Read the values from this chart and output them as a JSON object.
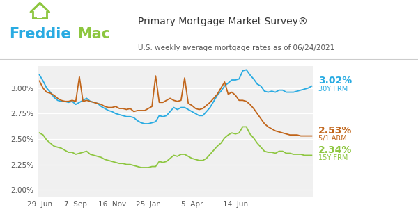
{
  "title": "Primary Mortgage Market Survey®",
  "subtitle": "U.S. weekly average mortgage rates as of 06/24/2021",
  "bg_color": "#ffffff",
  "plot_bg_color": "#f0f0f0",
  "x_labels": [
    "29. Jun",
    "7. Sep",
    "16. Nov",
    "25. Jan",
    "5. Apr",
    "14. Jun"
  ],
  "x_tick_pos": [
    0,
    10,
    20,
    30,
    42,
    54
  ],
  "y_ticks": [
    2.0,
    2.25,
    2.5,
    2.75,
    3.0
  ],
  "ylim": [
    1.93,
    3.22
  ],
  "line_30y_color": "#29abe2",
  "line_15y_color": "#8dc63f",
  "line_arm_color": "#c1651a",
  "label_30y": "3.02%",
  "label_30y_sub": "30Y FRM",
  "label_15y": "2.34%",
  "label_15y_sub": "15Y FRM",
  "label_arm": "2.53%",
  "label_arm_sub": "5/1 ARM",
  "freddie_blue": "#29abe2",
  "freddie_green": "#8dc63f",
  "separator_color": "#cccccc",
  "data_30y": [
    3.13,
    3.07,
    3.0,
    2.96,
    2.91,
    2.88,
    2.87,
    2.87,
    2.86,
    2.87,
    2.84,
    2.86,
    2.88,
    2.9,
    2.87,
    2.86,
    2.85,
    2.82,
    2.8,
    2.78,
    2.77,
    2.75,
    2.74,
    2.73,
    2.72,
    2.72,
    2.71,
    2.68,
    2.66,
    2.65,
    2.65,
    2.66,
    2.67,
    2.73,
    2.72,
    2.73,
    2.77,
    2.81,
    2.79,
    2.81,
    2.81,
    2.79,
    2.77,
    2.75,
    2.73,
    2.73,
    2.77,
    2.81,
    2.87,
    2.93,
    2.97,
    3.02,
    3.05,
    3.08,
    3.08,
    3.09,
    3.17,
    3.18,
    3.13,
    3.09,
    3.04,
    3.02,
    2.97,
    2.96,
    2.97,
    2.96,
    2.98,
    2.98,
    2.96,
    2.96,
    2.96,
    2.97,
    2.98,
    2.99,
    3.0,
    3.02
  ],
  "data_15y": [
    2.56,
    2.54,
    2.49,
    2.46,
    2.43,
    2.42,
    2.41,
    2.39,
    2.37,
    2.37,
    2.35,
    2.36,
    2.37,
    2.38,
    2.35,
    2.34,
    2.33,
    2.32,
    2.3,
    2.29,
    2.28,
    2.27,
    2.26,
    2.26,
    2.25,
    2.25,
    2.24,
    2.23,
    2.22,
    2.22,
    2.22,
    2.23,
    2.23,
    2.28,
    2.27,
    2.28,
    2.31,
    2.34,
    2.33,
    2.35,
    2.35,
    2.33,
    2.31,
    2.3,
    2.29,
    2.29,
    2.31,
    2.35,
    2.39,
    2.43,
    2.46,
    2.51,
    2.54,
    2.56,
    2.55,
    2.56,
    2.62,
    2.62,
    2.55,
    2.51,
    2.46,
    2.42,
    2.38,
    2.37,
    2.37,
    2.36,
    2.38,
    2.38,
    2.36,
    2.36,
    2.35,
    2.35,
    2.35,
    2.34,
    2.34,
    2.34
  ],
  "data_arm": [
    3.07,
    3.0,
    2.96,
    2.95,
    2.93,
    2.9,
    2.88,
    2.87,
    2.87,
    2.88,
    2.87,
    3.11,
    2.87,
    2.88,
    2.87,
    2.86,
    2.85,
    2.84,
    2.82,
    2.81,
    2.81,
    2.82,
    2.8,
    2.8,
    2.79,
    2.8,
    2.77,
    2.78,
    2.78,
    2.78,
    2.8,
    2.82,
    3.12,
    2.86,
    2.86,
    2.88,
    2.9,
    2.88,
    2.87,
    2.88,
    3.1,
    2.85,
    2.83,
    2.8,
    2.79,
    2.8,
    2.83,
    2.86,
    2.9,
    2.94,
    3.0,
    3.06,
    2.94,
    2.96,
    2.93,
    2.88,
    2.88,
    2.87,
    2.84,
    2.8,
    2.75,
    2.7,
    2.65,
    2.62,
    2.6,
    2.58,
    2.57,
    2.56,
    2.55,
    2.54,
    2.54,
    2.54,
    2.53,
    2.53,
    2.53,
    2.53
  ]
}
